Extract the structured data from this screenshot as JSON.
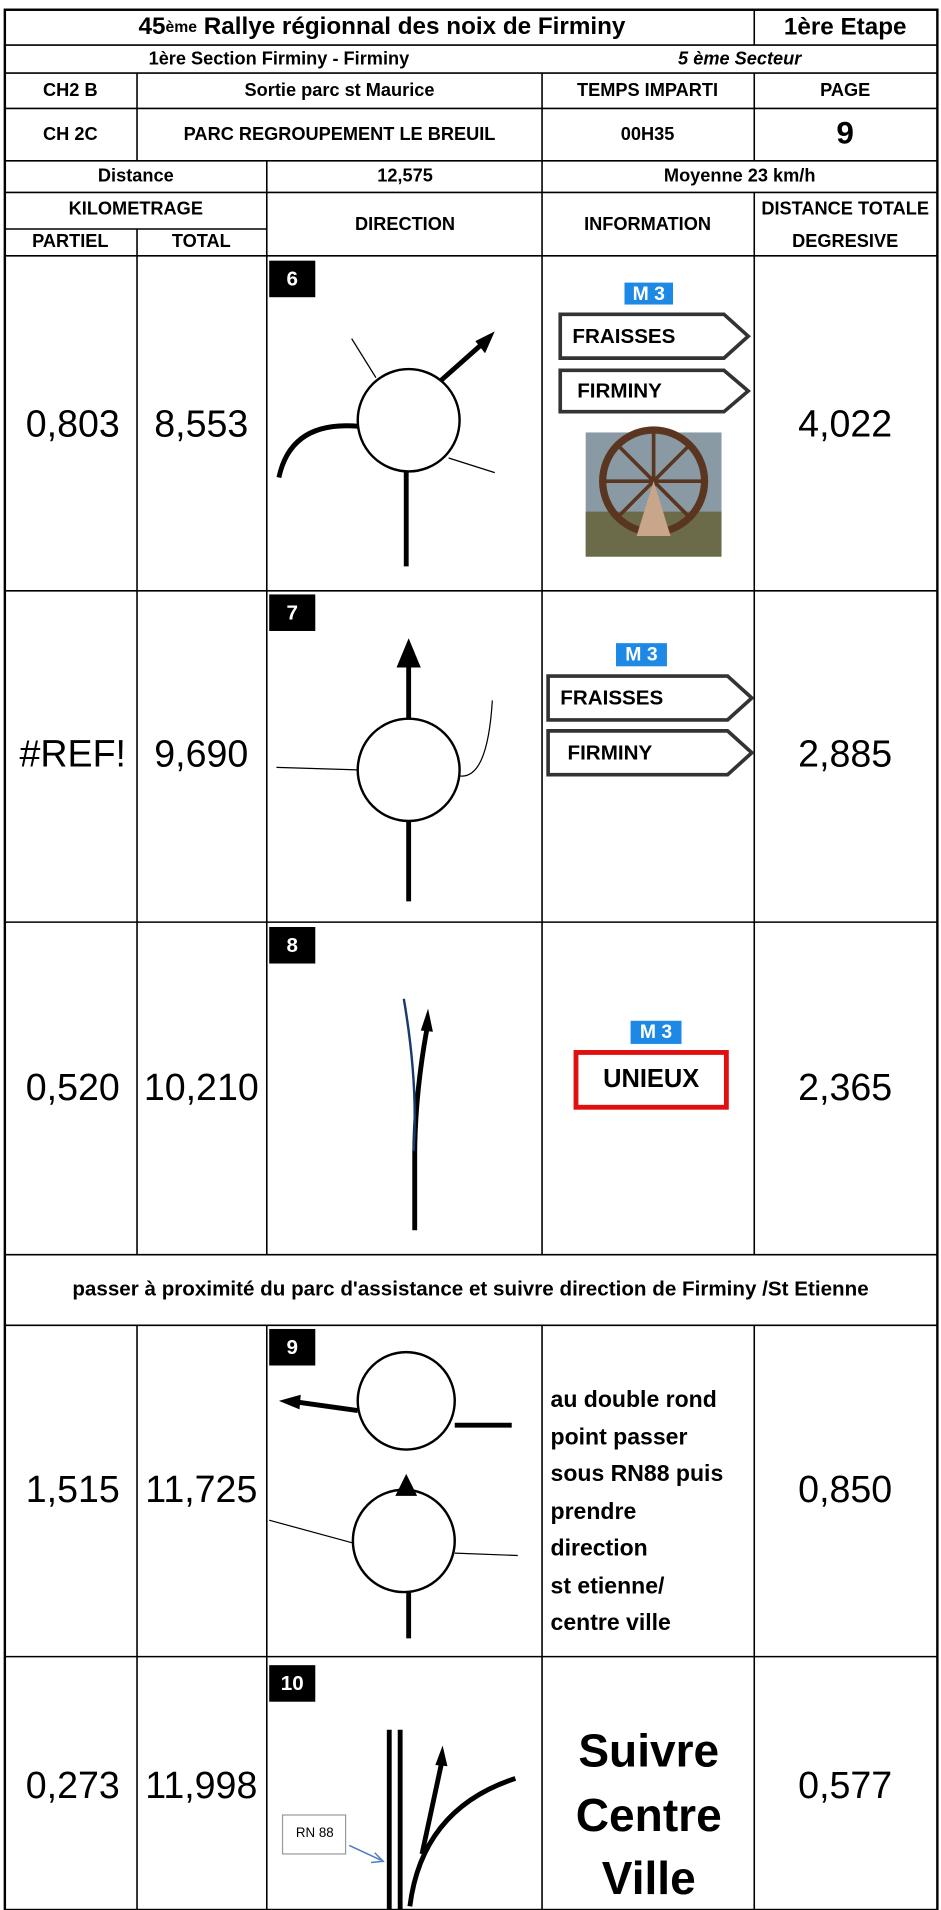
{
  "header": {
    "title_number": "45",
    "title_sup": "ème",
    "title_rest": "Rallye régionnal des noix de Firminy",
    "stage": "1ère Etape",
    "section": "1ère Section Firminy - Firminy",
    "sector": "5 ème Secteur",
    "ch_start_code": "CH2 B",
    "ch_start_label": "Sortie parc st Maurice",
    "time_label": "TEMPS IMPARTI",
    "page_label": "PAGE",
    "ch_end_code": "CH 2C",
    "ch_end_label": "PARC REGROUPEMENT LE BREUIL",
    "time_value": "00H35",
    "page_value": "9",
    "distance_label": "Distance",
    "distance_value": "12,575",
    "average": "Moyenne 23 km/h"
  },
  "columns": {
    "kilometrage": "KILOMETRAGE",
    "partial": "PARTIEL",
    "total": "TOTAL",
    "direction": "DIRECTION",
    "information": "INFORMATION",
    "remaining": [
      "DISTANCE TOTALE",
      "DEGRESIVE"
    ]
  },
  "rows": [
    {
      "number": "6",
      "partial": "0,803",
      "total": "8,553",
      "remaining": "4,022",
      "route": "M 3",
      "signs": [
        "FRAISSES",
        "FIRMINY"
      ]
    },
    {
      "number": "7",
      "partial": "#REF!",
      "total": "9,690",
      "remaining": "2,885",
      "route": "M 3",
      "signs": [
        "FRAISSES",
        "FIRMINY"
      ]
    },
    {
      "number": "8",
      "partial": "0,520",
      "total": "10,210",
      "remaining": "2,365",
      "route": "M 3",
      "signs": [
        "UNIEUX"
      ]
    },
    {
      "number": "9",
      "partial": "1,515",
      "total": "11,725",
      "remaining": "0,850",
      "info": [
        "au double rond",
        "point passer",
        "sous RN88 puis",
        "prendre",
        "direction",
        "st etienne/",
        "centre ville"
      ]
    },
    {
      "number": "10",
      "partial": "0,273",
      "total": "11,998",
      "remaining": "0,577",
      "diagram_label": "RN 88",
      "info": [
        "Suivre",
        "Centre",
        "Ville"
      ]
    }
  ],
  "note": "passer à proximité du parc d'assistance et suivre direction de Firminy /St Etienne"
}
